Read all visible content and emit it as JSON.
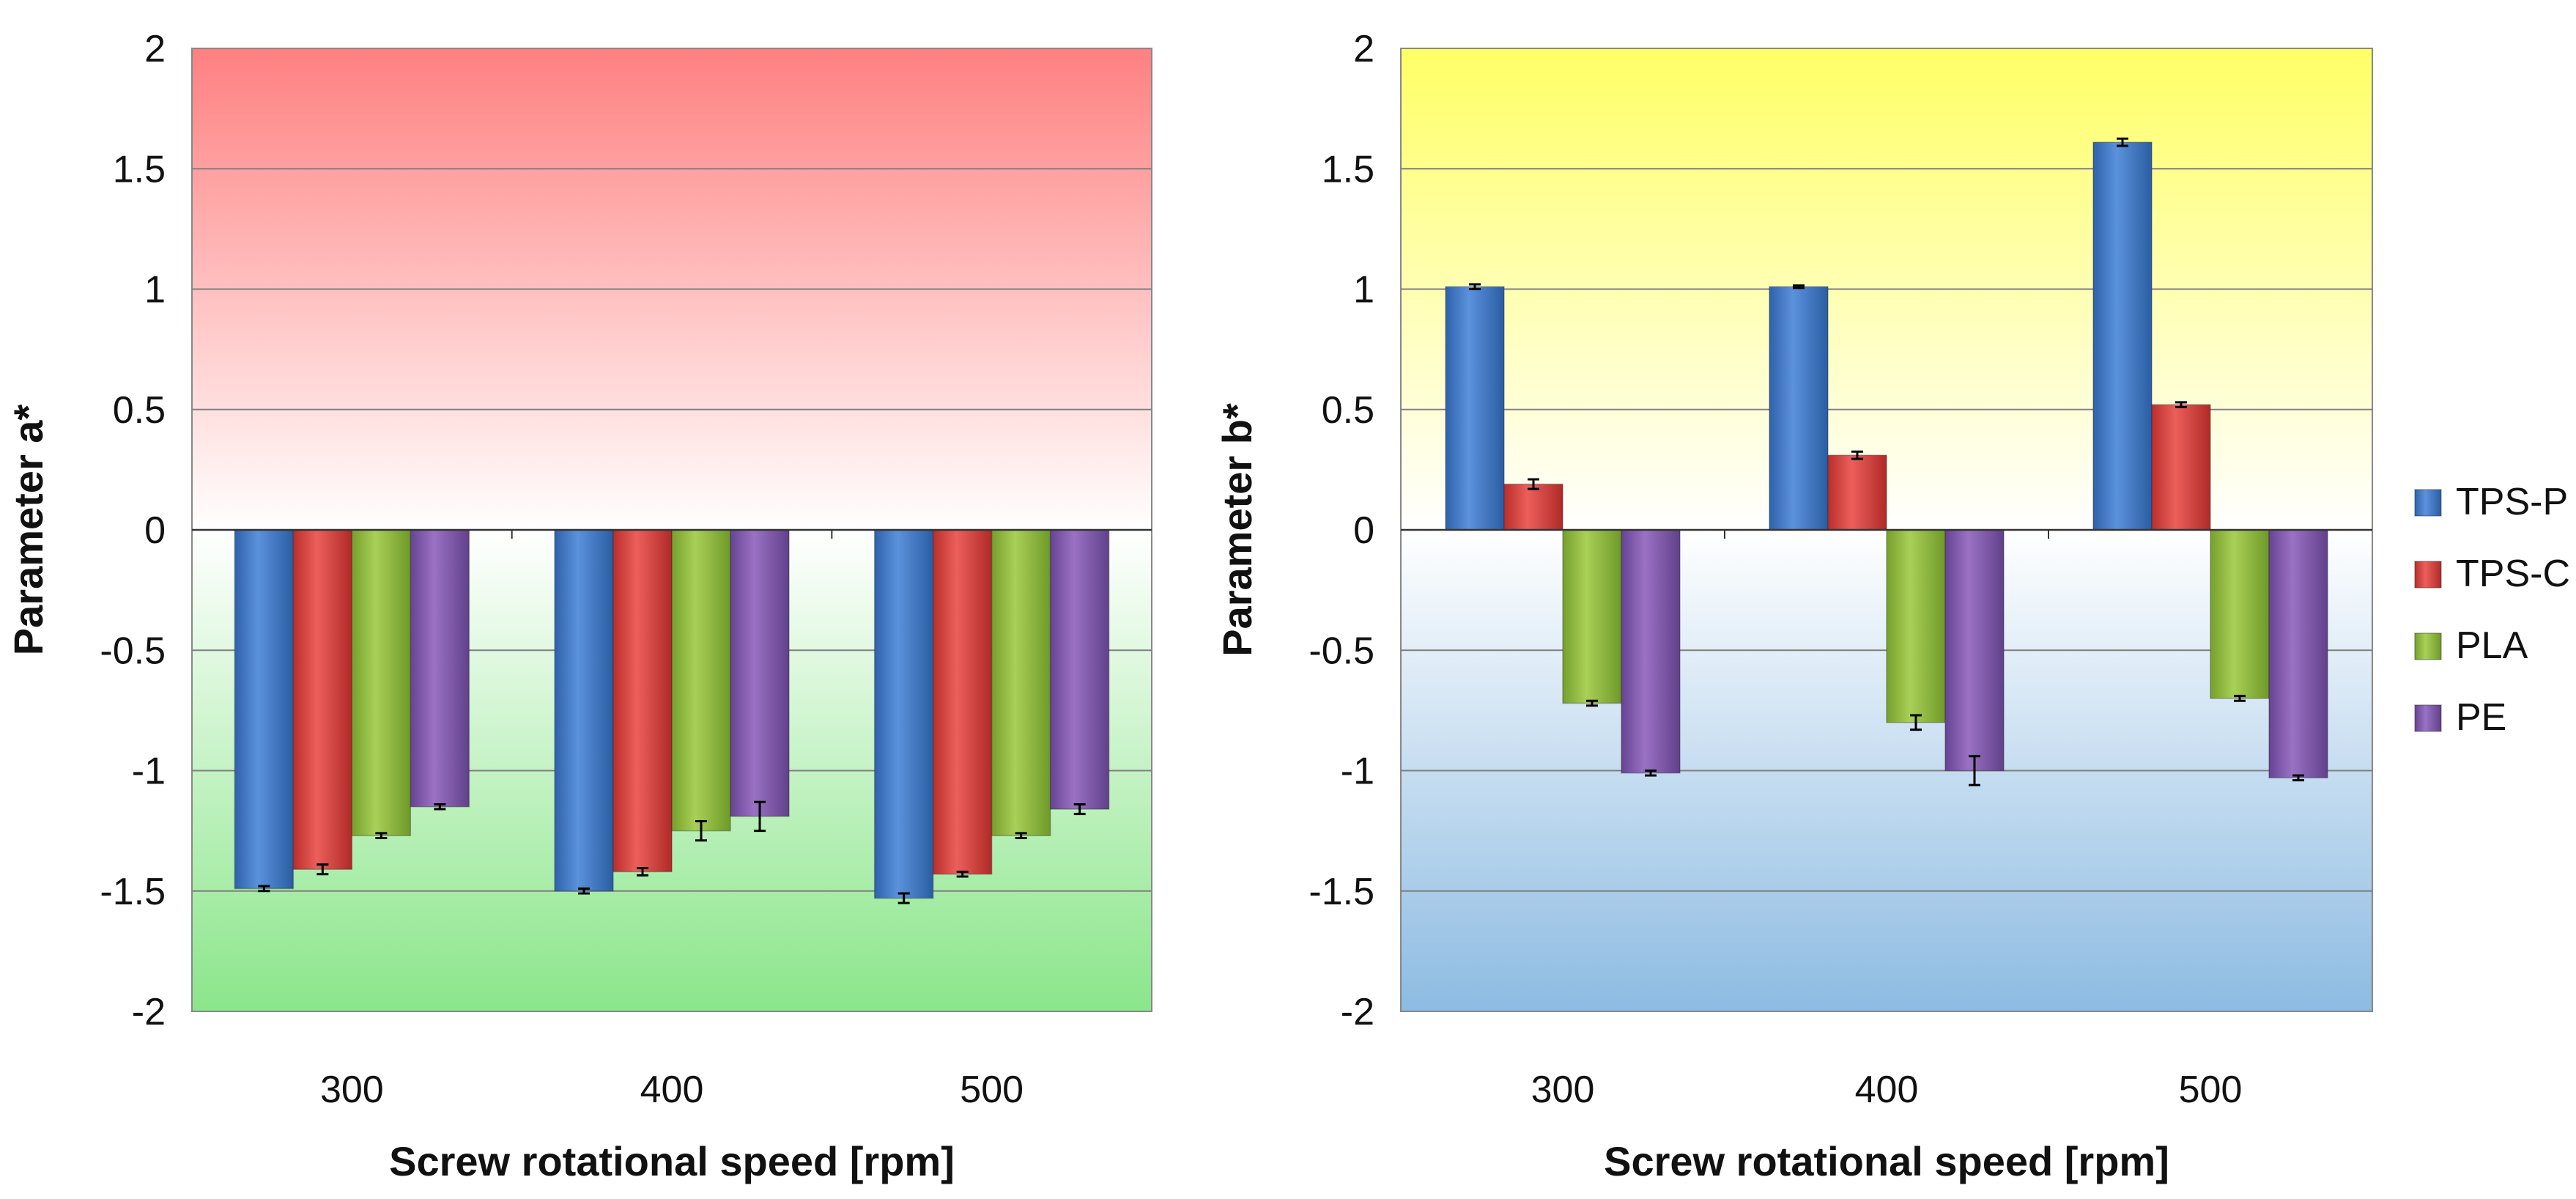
{
  "chart_data": [
    {
      "type": "bar",
      "background": "red-to-green-vertical-gradient",
      "categories": [
        "300",
        "400",
        "500"
      ],
      "xlabel": "Screw rotational speed [rpm]",
      "ylabel": "Parameter  a*",
      "ylim": [
        -2,
        2
      ],
      "yticks": [
        2,
        1.5,
        1,
        0.5,
        0,
        -0.5,
        -1,
        -1.5,
        -2
      ],
      "ytick_labels": [
        "2",
        "1.5",
        "1",
        "0.5",
        "0",
        "-0.5",
        "-1",
        "-1.5",
        "-2"
      ],
      "grid": true,
      "series": [
        {
          "name": "TPS-P",
          "values": [
            -1.49,
            -1.5,
            -1.53
          ],
          "errors": [
            0.01,
            0.01,
            0.02
          ]
        },
        {
          "name": "TPS-C",
          "values": [
            -1.41,
            -1.42,
            -1.43
          ],
          "errors": [
            0.02,
            0.015,
            0.01
          ]
        },
        {
          "name": "PLA",
          "values": [
            -1.27,
            -1.25,
            -1.27
          ],
          "errors": [
            0.01,
            0.04,
            0.01
          ]
        },
        {
          "name": "PE",
          "values": [
            -1.15,
            -1.19,
            -1.16
          ],
          "errors": [
            0.01,
            0.06,
            0.02
          ]
        }
      ]
    },
    {
      "type": "bar",
      "background": "yellow-to-blue-vertical-gradient",
      "categories": [
        "300",
        "400",
        "500"
      ],
      "xlabel": "Screw rotational speed [rpm]",
      "ylabel": "Parameter  b*",
      "ylim": [
        -2,
        2
      ],
      "yticks": [
        2,
        1.5,
        1,
        0.5,
        0,
        -0.5,
        -1,
        -1.5,
        -2
      ],
      "ytick_labels": [
        "2",
        "1.5",
        "1",
        "0.5",
        "0",
        "-0.5",
        "-1",
        "-1.5",
        "-2"
      ],
      "grid": true,
      "legend_position": "right",
      "series": [
        {
          "name": "TPS-P",
          "values": [
            1.01,
            1.01,
            1.61
          ],
          "errors": [
            0.01,
            0.005,
            0.015
          ]
        },
        {
          "name": "TPS-C",
          "values": [
            0.19,
            0.31,
            0.52
          ],
          "errors": [
            0.02,
            0.015,
            0.01
          ]
        },
        {
          "name": "PLA",
          "values": [
            -0.72,
            -0.8,
            -0.7
          ],
          "errors": [
            0.01,
            0.03,
            0.01
          ]
        },
        {
          "name": "PE",
          "values": [
            -1.01,
            -1.0,
            -1.03
          ],
          "errors": [
            0.01,
            0.06,
            0.01
          ]
        }
      ]
    }
  ],
  "legend": [
    {
      "name": "TPS-P",
      "color": "#3a73c2"
    },
    {
      "name": "TPS-C",
      "color": "#d23c38"
    },
    {
      "name": "PLA",
      "color": "#8db73c"
    },
    {
      "name": "PE",
      "color": "#7d56a7"
    }
  ],
  "colors": {
    "TPS-P": "#3a73c2",
    "TPS-C": "#d23c38",
    "PLA": "#8db73c",
    "PE": "#7d56a7"
  }
}
